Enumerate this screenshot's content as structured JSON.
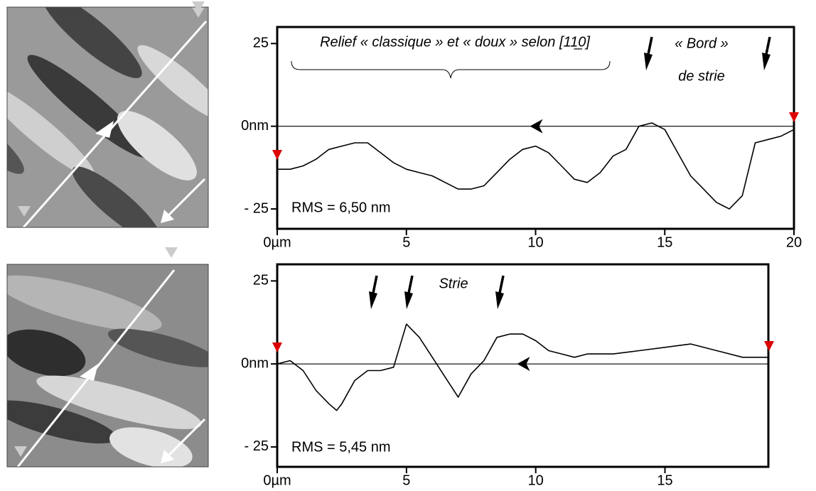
{
  "chart_data": [
    {
      "type": "line",
      "x": [
        0,
        0.5,
        1,
        1.5,
        2,
        2.5,
        3,
        3.5,
        4,
        4.5,
        5,
        5.5,
        6,
        6.5,
        7,
        7.5,
        8,
        8.5,
        9,
        9.5,
        10,
        10.5,
        11,
        11.5,
        12,
        12.5,
        13,
        13.5,
        14,
        14.5,
        15,
        15.5,
        16,
        16.5,
        17,
        17.5,
        18,
        18.5,
        19,
        19.5,
        20
      ],
      "series": [
        {
          "color": "#000000",
          "values": [
            -13,
            -13,
            -12,
            -10,
            -7,
            -6,
            -5,
            -5,
            -8,
            -11,
            -13,
            -14,
            -15,
            -17,
            -19,
            -19,
            -18,
            -14,
            -10,
            -7,
            -6,
            -8,
            -12,
            -16,
            -17,
            -14,
            -9,
            -7,
            0,
            1,
            -1,
            -8,
            -15,
            -19,
            -23,
            -25,
            -21,
            -5,
            -4,
            -3,
            -1
          ]
        }
      ],
      "xlim": [
        0,
        20
      ],
      "ylim": [
        -31,
        30
      ],
      "xticks": [
        {
          "value": 0,
          "label": "0µm"
        },
        5,
        10,
        15,
        20
      ],
      "yticks": [
        {
          "value": -25,
          "label": "- 25"
        },
        {
          "value": 0,
          "label": "0nm"
        },
        25
      ],
      "annotations": [
        "Relief « classique » et « doux » selon [11̲0]",
        "« Bord »",
        "de strie",
        "RMS = 6,50 nm"
      ]
    },
    {
      "type": "line",
      "x": [
        0,
        0.5,
        1,
        1.5,
        2,
        2.3,
        2.5,
        3,
        3.5,
        4,
        4.5,
        5,
        5.5,
        6,
        6.5,
        7,
        7.5,
        8,
        8.5,
        9,
        9.5,
        10,
        10.5,
        11,
        11.5,
        12,
        13,
        14,
        15,
        16,
        17,
        18,
        19
      ],
      "series": [
        {
          "color": "#000000",
          "values": [
            0,
            1,
            -2,
            -8,
            -12,
            -14,
            -12,
            -5,
            -2,
            -2,
            -1,
            12,
            8,
            2,
            -4,
            -10,
            -3,
            1,
            8,
            9,
            9,
            7,
            4,
            3,
            2,
            3,
            3,
            4,
            5,
            6,
            4,
            2,
            2
          ]
        }
      ],
      "xlim": [
        0,
        19
      ],
      "ylim": [
        -31,
        30
      ],
      "xticks": [
        {
          "value": 0,
          "label": "0µm"
        },
        5,
        10,
        15
      ],
      "yticks": [
        {
          "value": -25,
          "label": "- 25"
        },
        {
          "value": 0,
          "label": "0nm"
        },
        25
      ],
      "annotations": [
        "Strie",
        "RMS = 5,45 nm"
      ]
    }
  ]
}
